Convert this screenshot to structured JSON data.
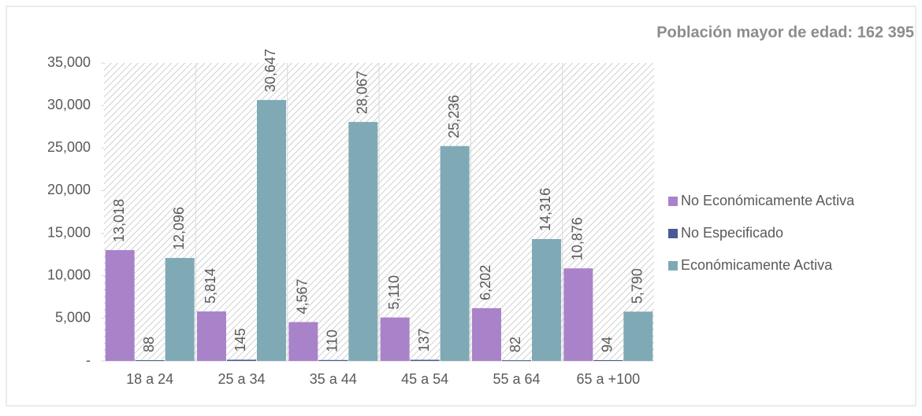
{
  "chart_data": {
    "type": "bar",
    "title": "Población mayor de edad: 162 395",
    "categories": [
      "18 a 24",
      "25 a 34",
      "35 a 44",
      "45 a 54",
      "55 a 64",
      "65 a +100"
    ],
    "series": [
      {
        "name": "No Económicamente Activa",
        "color": "#a983c9",
        "values": [
          13018,
          5814,
          4567,
          5110,
          6202,
          10876
        ],
        "value_labels": [
          "13,018",
          "5,814",
          "4,567",
          "5,110",
          "6,202",
          "10,876"
        ]
      },
      {
        "name": "No Especificado",
        "color": "#4a5a96",
        "values": [
          88,
          145,
          110,
          137,
          82,
          94
        ],
        "value_labels": [
          "88",
          "145",
          "110",
          "137",
          "82",
          "94"
        ]
      },
      {
        "name": "Económicamente Activa",
        "color": "#7faab5",
        "values": [
          12096,
          30647,
          28067,
          25236,
          14316,
          5790
        ],
        "value_labels": [
          "12,096",
          "30,647",
          "28,067",
          "25,236",
          "14,316",
          "5,790"
        ]
      }
    ],
    "ylim": [
      0,
      35000
    ],
    "yticks": [
      {
        "value": 0,
        "label": "-"
      },
      {
        "value": 5000,
        "label": "5,000"
      },
      {
        "value": 10000,
        "label": "10,000"
      },
      {
        "value": 15000,
        "label": "15,000"
      },
      {
        "value": 20000,
        "label": "20,000"
      },
      {
        "value": 25000,
        "label": "25,000"
      },
      {
        "value": 30000,
        "label": "30,000"
      },
      {
        "value": 35000,
        "label": "35,000"
      }
    ],
    "legend": "right"
  }
}
